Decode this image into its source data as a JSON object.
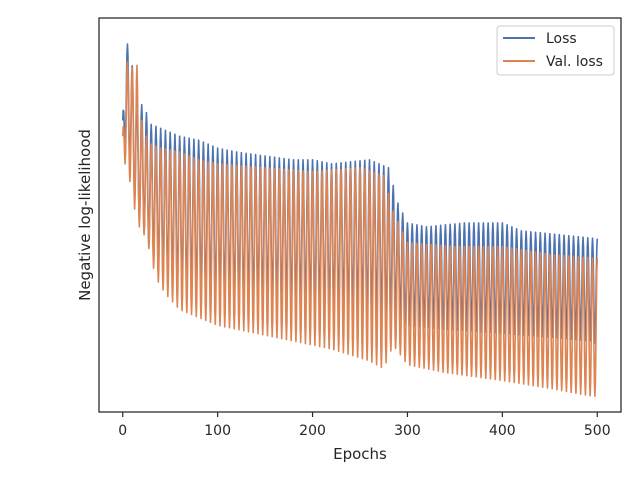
{
  "chart_data": {
    "type": "line",
    "xlabel": "Epochs",
    "ylabel": "Negative log-likelihood",
    "xlim": [
      -25,
      525
    ],
    "ylim": [
      0,
      1
    ],
    "x_ticks": [
      0,
      100,
      200,
      300,
      400,
      500
    ],
    "x_tick_labels": [
      "0",
      "100",
      "200",
      "300",
      "400",
      "500"
    ],
    "y_ticks_shown": false,
    "grid": false,
    "legend_position": "top-right",
    "legend": [
      "Loss",
      "Val. loss"
    ],
    "x_range": [
      0,
      500
    ],
    "oscillation_period_epochs": 5,
    "series": [
      {
        "name": "Loss",
        "color": "#4c72b0",
        "upper_envelope": [
          [
            0,
            0.74
          ],
          [
            3,
            0.95
          ],
          [
            8,
            0.91
          ],
          [
            15,
            0.8
          ],
          [
            20,
            0.78
          ],
          [
            25,
            0.76
          ],
          [
            30,
            0.73
          ],
          [
            40,
            0.72
          ],
          [
            50,
            0.71
          ],
          [
            60,
            0.7
          ],
          [
            80,
            0.69
          ],
          [
            100,
            0.67
          ],
          [
            120,
            0.66
          ],
          [
            150,
            0.65
          ],
          [
            180,
            0.64
          ],
          [
            200,
            0.64
          ],
          [
            220,
            0.63
          ],
          [
            260,
            0.64
          ],
          [
            280,
            0.62
          ],
          [
            290,
            0.53
          ],
          [
            300,
            0.48
          ],
          [
            320,
            0.47
          ],
          [
            360,
            0.48
          ],
          [
            400,
            0.48
          ],
          [
            420,
            0.46
          ],
          [
            460,
            0.45
          ],
          [
            500,
            0.44
          ]
        ],
        "lower_envelope": [
          [
            0,
            0.68
          ],
          [
            5,
            0.66
          ],
          [
            15,
            0.5
          ],
          [
            25,
            0.44
          ],
          [
            35,
            0.37
          ],
          [
            45,
            0.34
          ],
          [
            60,
            0.31
          ],
          [
            80,
            0.3
          ],
          [
            100,
            0.29
          ],
          [
            140,
            0.28
          ],
          [
            180,
            0.27
          ],
          [
            220,
            0.26
          ],
          [
            260,
            0.25
          ],
          [
            275,
            0.23
          ],
          [
            285,
            0.25
          ],
          [
            300,
            0.22
          ],
          [
            340,
            0.21
          ],
          [
            400,
            0.2
          ],
          [
            450,
            0.19
          ],
          [
            495,
            0.18
          ],
          [
            500,
            0.17
          ]
        ]
      },
      {
        "name": "Val. loss",
        "color": "#dd8452",
        "upper_envelope": [
          [
            0,
            0.7
          ],
          [
            3,
            0.9
          ],
          [
            8,
            0.87
          ],
          [
            15,
            0.88
          ],
          [
            20,
            0.74
          ],
          [
            25,
            0.7
          ],
          [
            30,
            0.68
          ],
          [
            40,
            0.67
          ],
          [
            60,
            0.66
          ],
          [
            80,
            0.64
          ],
          [
            100,
            0.63
          ],
          [
            150,
            0.62
          ],
          [
            200,
            0.61
          ],
          [
            250,
            0.62
          ],
          [
            275,
            0.6
          ],
          [
            285,
            0.51
          ],
          [
            300,
            0.43
          ],
          [
            350,
            0.42
          ],
          [
            400,
            0.42
          ],
          [
            450,
            0.4
          ],
          [
            500,
            0.39
          ]
        ],
        "lower_envelope": [
          [
            0,
            0.64
          ],
          [
            5,
            0.62
          ],
          [
            15,
            0.48
          ],
          [
            25,
            0.44
          ],
          [
            35,
            0.34
          ],
          [
            45,
            0.3
          ],
          [
            60,
            0.26
          ],
          [
            80,
            0.24
          ],
          [
            100,
            0.22
          ],
          [
            140,
            0.2
          ],
          [
            180,
            0.18
          ],
          [
            220,
            0.16
          ],
          [
            260,
            0.13
          ],
          [
            275,
            0.11
          ],
          [
            285,
            0.17
          ],
          [
            300,
            0.12
          ],
          [
            340,
            0.1
          ],
          [
            400,
            0.08
          ],
          [
            450,
            0.06
          ],
          [
            495,
            0.04
          ],
          [
            500,
            0.04
          ]
        ]
      }
    ]
  }
}
